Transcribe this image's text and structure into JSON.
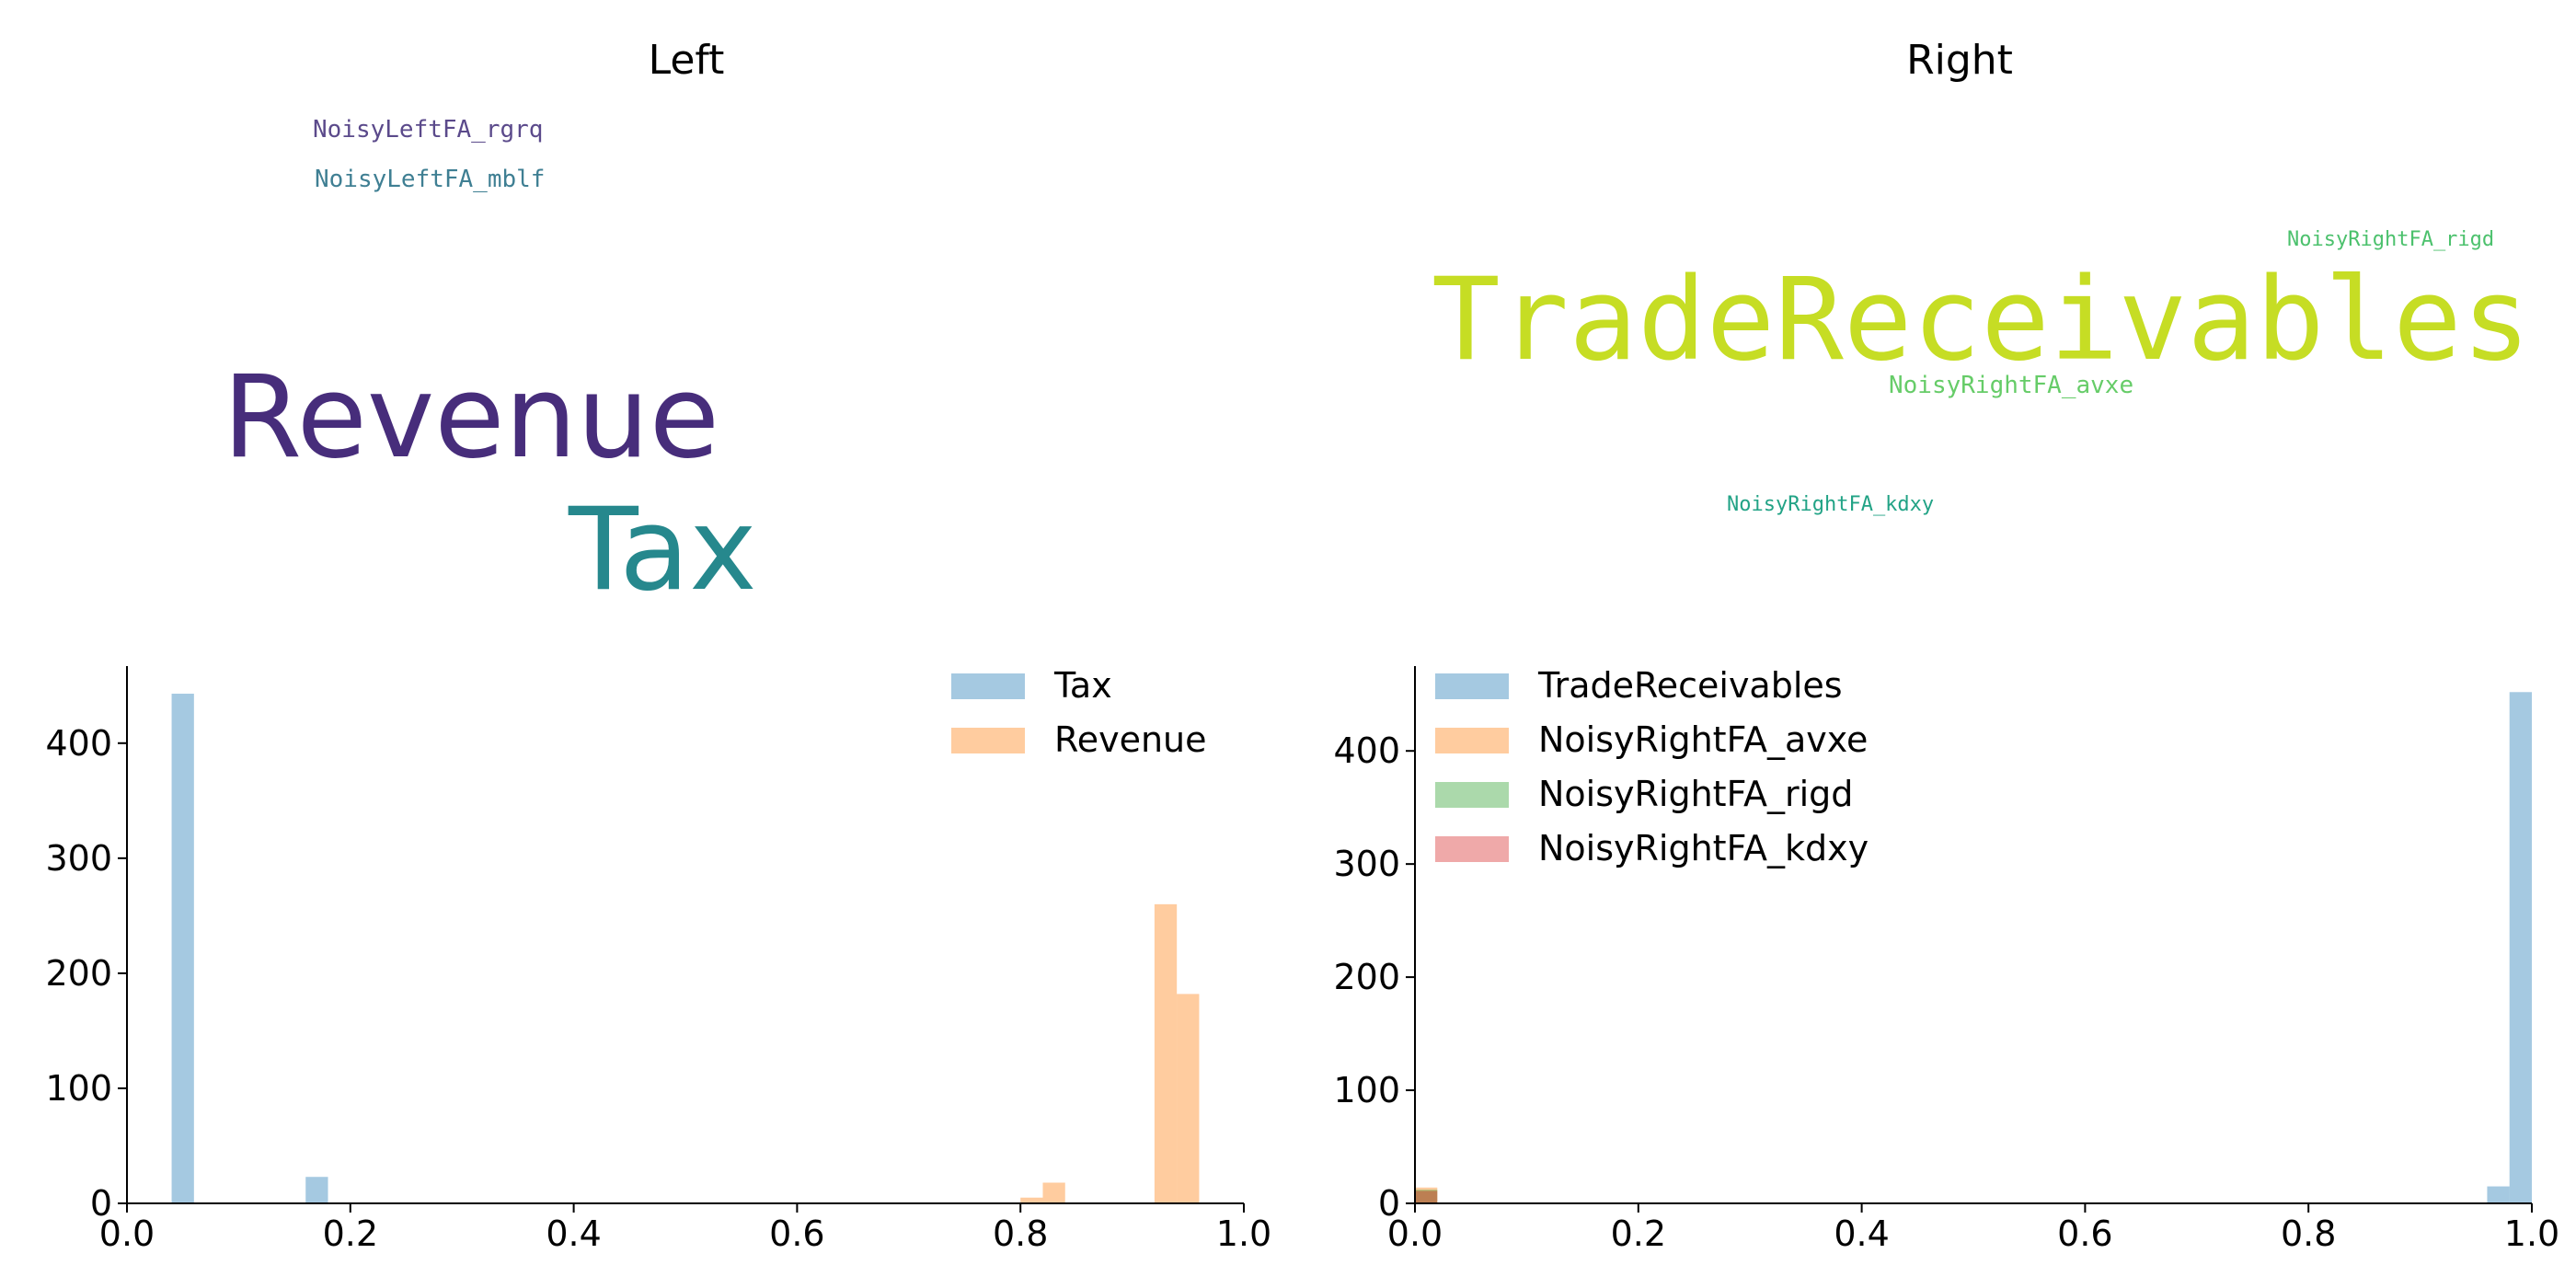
{
  "titles": {
    "left": "Left",
    "right": "Right"
  },
  "wordclouds": {
    "left": [
      {
        "text": "NoisyLeftFA_rgrq",
        "color": "#5b4a8b",
        "font": "mono",
        "size": 26,
        "x": 340,
        "y": 128
      },
      {
        "text": "NoisyLeftFA_mblf",
        "color": "#3f7f93",
        "font": "mono",
        "size": 26,
        "x": 342,
        "y": 182
      },
      {
        "text": "Revenue",
        "color": "#472d7b",
        "font": "sans",
        "size": 124,
        "x": 242,
        "y": 392
      },
      {
        "text": "Tax",
        "color": "#26888d",
        "font": "sans",
        "size": 124,
        "x": 618,
        "y": 536
      }
    ],
    "right": [
      {
        "text": "NoisyRightFA_rigd",
        "color": "#4cc16d",
        "font": "mono",
        "size": 22,
        "x": 2486,
        "y": 250
      },
      {
        "text": "TradeReceivables",
        "color": "#c6dd24",
        "font": "mono",
        "size": 124,
        "x": 1556,
        "y": 286
      },
      {
        "text": "NoisyRightFA_avxe",
        "color": "#66cc68",
        "font": "mono",
        "size": 26,
        "x": 2053,
        "y": 406
      },
      {
        "text": "NoisyRightFA_kdxy",
        "color": "#22a386",
        "font": "mono",
        "size": 22,
        "x": 1877,
        "y": 538
      }
    ]
  },
  "chart_data": [
    {
      "type": "bar",
      "subtype": "histogram",
      "title": "",
      "xlabel": "",
      "ylabel": "",
      "xlim": [
        0,
        1
      ],
      "ylim": [
        0,
        467
      ],
      "xticks": [
        "0.0",
        "0.2",
        "0.4",
        "0.6",
        "0.8",
        "1.0"
      ],
      "yticks": [
        "0",
        "100",
        "200",
        "300",
        "400"
      ],
      "legend_position": "top-right",
      "bin_width": 0.02,
      "series": [
        {
          "name": "Tax",
          "color": "#1f77b4",
          "opacity": 0.4,
          "bins": [
            {
              "x": 0.04,
              "count": 443
            },
            {
              "x": 0.16,
              "count": 23
            }
          ]
        },
        {
          "name": "Revenue",
          "color": "#ff7f0e",
          "opacity": 0.4,
          "bins": [
            {
              "x": 0.8,
              "count": 5
            },
            {
              "x": 0.82,
              "count": 18
            },
            {
              "x": 0.92,
              "count": 260
            },
            {
              "x": 0.94,
              "count": 182
            }
          ]
        }
      ]
    },
    {
      "type": "bar",
      "subtype": "histogram",
      "title": "",
      "xlabel": "",
      "ylabel": "",
      "xlim": [
        0,
        1
      ],
      "ylim": [
        0,
        475
      ],
      "xticks": [
        "0.0",
        "0.2",
        "0.4",
        "0.6",
        "0.8",
        "1.0"
      ],
      "yticks": [
        "0",
        "100",
        "200",
        "300",
        "400"
      ],
      "legend_position": "top-left",
      "bin_width": 0.02,
      "series": [
        {
          "name": "TradeReceivables",
          "color": "#1f77b4",
          "opacity": 0.4,
          "bins": [
            {
              "x": 0.96,
              "count": 15
            },
            {
              "x": 0.98,
              "count": 452
            }
          ]
        },
        {
          "name": "NoisyRightFA_avxe",
          "color": "#ff7f0e",
          "opacity": 0.4,
          "bins": [
            {
              "x": 0.0,
              "count": 14
            }
          ]
        },
        {
          "name": "NoisyRightFA_rigd",
          "color": "#2ca02c",
          "opacity": 0.4,
          "bins": [
            {
              "x": 0.0,
              "count": 12
            }
          ]
        },
        {
          "name": "NoisyRightFA_kdxy",
          "color": "#d62728",
          "opacity": 0.4,
          "bins": [
            {
              "x": 0.0,
              "count": 11
            }
          ]
        }
      ]
    }
  ]
}
